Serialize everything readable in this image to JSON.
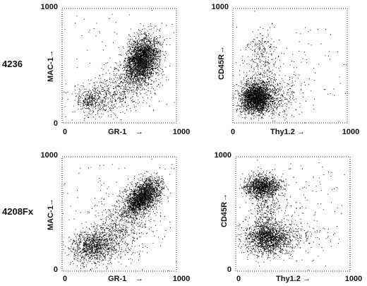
{
  "row_labels": [
    "4236",
    "4208Fx"
  ],
  "chart_data": [
    {
      "type": "scatter",
      "sample": "4236",
      "xlabel": "GR-1",
      "ylabel": "MAC-1",
      "xlim": [
        0,
        1000
      ],
      "ylim": [
        0,
        1000
      ],
      "x_ticks": [
        "0",
        "1000"
      ],
      "y_ticks": [
        "0",
        "1000"
      ],
      "clusters": [
        {
          "x": 700,
          "y": 560,
          "sx": 70,
          "sy": 100,
          "rho": 0.25,
          "n": 2600
        },
        {
          "x": 560,
          "y": 330,
          "sx": 140,
          "sy": 110,
          "rho": 0.4,
          "n": 450
        },
        {
          "x": 240,
          "y": 200,
          "sx": 60,
          "sy": 50,
          "rho": 0.1,
          "n": 260
        },
        {
          "x": 380,
          "y": 220,
          "sx": 150,
          "sy": 90,
          "rho": 0.3,
          "n": 260
        },
        {
          "x": 500,
          "y": 500,
          "sx": 300,
          "sy": 300,
          "rho": 0.0,
          "n": 120
        }
      ]
    },
    {
      "type": "scatter",
      "sample": "4236",
      "xlabel": "Thy1.2",
      "ylabel": "CD45R",
      "xlim": [
        0,
        1000
      ],
      "ylim": [
        0,
        1000
      ],
      "x_ticks": [
        "0",
        "1000"
      ],
      "y_ticks": [
        "1000"
      ],
      "clusters": [
        {
          "x": 200,
          "y": 220,
          "sx": 70,
          "sy": 65,
          "rho": 0.0,
          "n": 2300
        },
        {
          "x": 350,
          "y": 220,
          "sx": 90,
          "sy": 90,
          "rho": 0.0,
          "n": 280
        },
        {
          "x": 250,
          "y": 560,
          "sx": 70,
          "sy": 130,
          "rho": 0.0,
          "n": 260
        },
        {
          "x": 450,
          "y": 400,
          "sx": 280,
          "sy": 250,
          "rho": 0.0,
          "n": 200
        }
      ]
    },
    {
      "type": "scatter",
      "sample": "4208Fx",
      "xlabel": "GR-1",
      "ylabel": "MAC-1",
      "xlim": [
        0,
        1000
      ],
      "ylim": [
        0,
        1000
      ],
      "x_ticks": [
        "0",
        "1000"
      ],
      "y_ticks": [
        "0",
        "1000"
      ],
      "clusters": [
        {
          "x": 700,
          "y": 650,
          "sx": 80,
          "sy": 80,
          "rho": 0.55,
          "n": 2100
        },
        {
          "x": 540,
          "y": 450,
          "sx": 140,
          "sy": 120,
          "rho": 0.5,
          "n": 400
        },
        {
          "x": 270,
          "y": 220,
          "sx": 90,
          "sy": 70,
          "rho": 0.1,
          "n": 900
        },
        {
          "x": 420,
          "y": 260,
          "sx": 160,
          "sy": 100,
          "rho": 0.2,
          "n": 350
        },
        {
          "x": 500,
          "y": 500,
          "sx": 320,
          "sy": 300,
          "rho": 0.0,
          "n": 160
        }
      ]
    },
    {
      "type": "scatter",
      "sample": "4208Fx",
      "xlabel": "Thy1.2",
      "ylabel": "CD45R",
      "xlim": [
        0,
        1000
      ],
      "ylim": [
        0,
        1000
      ],
      "x_ticks": [
        "0",
        "1000"
      ],
      "y_ticks": [
        "0",
        "1000"
      ],
      "clusters": [
        {
          "x": 230,
          "y": 740,
          "sx": 75,
          "sy": 50,
          "rho": 0.0,
          "n": 1200
        },
        {
          "x": 270,
          "y": 290,
          "sx": 90,
          "sy": 65,
          "rho": 0.0,
          "n": 1300
        },
        {
          "x": 260,
          "y": 520,
          "sx": 60,
          "sy": 110,
          "rho": 0.0,
          "n": 300
        },
        {
          "x": 450,
          "y": 300,
          "sx": 150,
          "sy": 80,
          "rho": 0.0,
          "n": 300
        },
        {
          "x": 500,
          "y": 500,
          "sx": 300,
          "sy": 280,
          "rho": 0.0,
          "n": 200
        }
      ]
    }
  ]
}
